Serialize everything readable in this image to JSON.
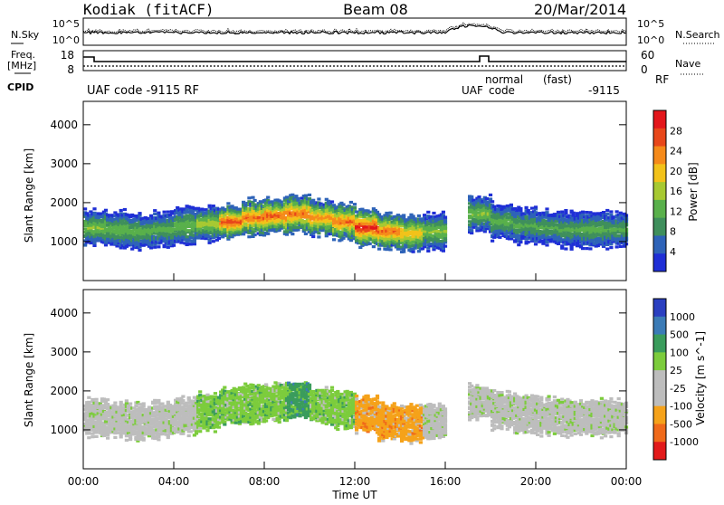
{
  "header": {
    "station": "Kodiak (fitACF)",
    "beam": "Beam 08",
    "date": "20/Mar/2014"
  },
  "top_panels": {
    "nsky_label": "N.Sky",
    "nsearch_label": "N.Search",
    "noise_ticks": [
      "10^5",
      "10^0"
    ],
    "freq_label": "Freq.",
    "freq_unit": "[MHz]",
    "freq_ticks": [
      "18",
      "8"
    ],
    "nave_label": "Nave",
    "nave_ticks": [
      "60",
      "0"
    ],
    "cpid_label": "CPID",
    "cpid_entries": [
      "UAF code -9115 RF",
      "UAF",
      "normal",
      "code",
      "(fast)",
      "-9115",
      "RF"
    ]
  },
  "colors": {
    "power": [
      "#1f2fd6",
      "#2e63b8",
      "#3f8f5c",
      "#59b04b",
      "#a7c932",
      "#f2c21a",
      "#f58a1a",
      "#e8471a",
      "#e3161b"
    ],
    "velocity": [
      "#2a3fc0",
      "#3b7bb6",
      "#3a9c5c",
      "#7ccc3c",
      "#bdbdbd",
      "#bdbdbd",
      "#f5a21a",
      "#f06a1a",
      "#e21a1a"
    ]
  },
  "chart_data": [
    {
      "type": "heatmap",
      "title": "Power",
      "xlabel": "Time UT",
      "ylabel": "Slant Range [km]",
      "colorbar_label": "Power [dB]",
      "x_ticks": [
        "00:00",
        "04:00",
        "08:00",
        "12:00",
        "16:00",
        "20:00",
        "00:00"
      ],
      "y_ticks": [
        "1000",
        "2000",
        "3000",
        "4000"
      ],
      "ylim": [
        0,
        4600
      ],
      "color_ticks": [
        "28",
        "24",
        "20",
        "16",
        "12",
        "8",
        "4"
      ],
      "color_range": [
        0,
        30
      ],
      "x_hours": [
        0,
        1,
        2,
        3,
        4,
        5,
        6,
        7,
        8,
        9,
        10,
        11,
        12,
        13,
        14,
        15,
        16,
        17,
        18,
        19,
        20,
        21,
        22,
        23,
        24
      ],
      "band_center_km": [
        1350,
        1300,
        1250,
        1300,
        1400,
        1450,
        1500,
        1600,
        1650,
        1700,
        1600,
        1500,
        1350,
        1250,
        1200,
        1250,
        0,
        1700,
        1500,
        1400,
        1350,
        1300,
        1300,
        1300,
        1300
      ],
      "band_power_db": [
        14,
        13,
        12,
        12,
        13,
        16,
        26,
        24,
        25,
        24,
        22,
        24,
        28,
        24,
        20,
        14,
        0,
        14,
        12,
        11,
        11,
        11,
        12,
        11,
        11
      ]
    },
    {
      "type": "heatmap",
      "title": "Velocity",
      "xlabel": "Time UT",
      "ylabel": "Slant Range [km]",
      "colorbar_label": "Velocity [m s^-1]",
      "x_ticks": [
        "00:00",
        "04:00",
        "08:00",
        "12:00",
        "16:00",
        "20:00",
        "00:00"
      ],
      "y_ticks": [
        "1000",
        "2000",
        "3000",
        "4000"
      ],
      "ylim": [
        0,
        4600
      ],
      "color_ticks": [
        "1000",
        "500",
        "100",
        "25",
        "-25",
        "-100",
        "-500",
        "-1000"
      ],
      "color_range": [
        -1000,
        1000
      ],
      "x_hours": [
        0,
        1,
        2,
        3,
        4,
        5,
        6,
        7,
        8,
        9,
        10,
        11,
        12,
        13,
        14,
        15,
        16,
        17,
        18,
        19,
        20,
        21,
        22,
        23,
        24
      ],
      "band_center_km": [
        1300,
        1250,
        1200,
        1250,
        1350,
        1450,
        1600,
        1650,
        1700,
        1750,
        1600,
        1500,
        1400,
        1200,
        1150,
        1200,
        0,
        1700,
        1500,
        1400,
        1350,
        1300,
        1300,
        1300,
        1300
      ],
      "band_velocity": [
        0,
        0,
        0,
        0,
        0,
        60,
        150,
        200,
        250,
        300,
        200,
        150,
        -150,
        -120,
        -100,
        0,
        0,
        0,
        0,
        0,
        0,
        0,
        0,
        0,
        0
      ]
    }
  ]
}
